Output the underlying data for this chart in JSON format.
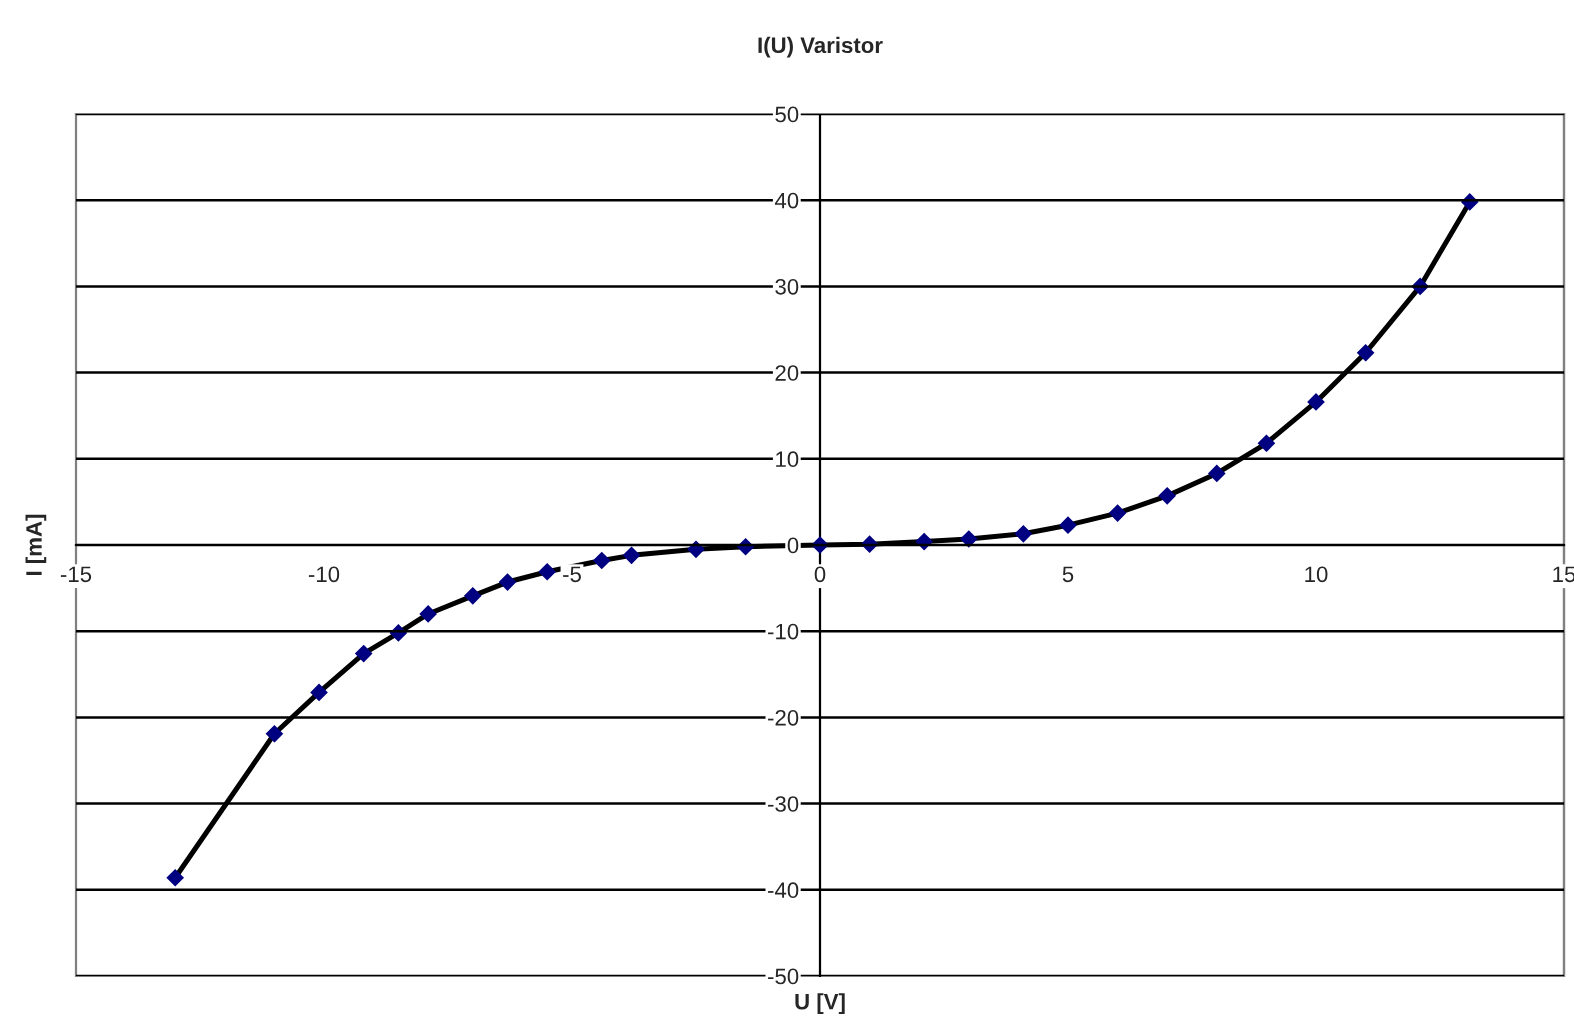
{
  "chart_data": {
    "type": "line",
    "title": "I(U) Varistor",
    "xlabel": "U [V]",
    "ylabel": "I [mA]",
    "xlim": [
      -15,
      15
    ],
    "xticks": [
      -15,
      -10,
      -5,
      0,
      5,
      10,
      15
    ],
    "ylim": [
      -50,
      50
    ],
    "yticks": [
      -50,
      -40,
      -30,
      -20,
      -10,
      0,
      10,
      20,
      30,
      40,
      50
    ],
    "grid": "y",
    "marker": "diamond",
    "line_style": "solid",
    "series": [
      {
        "color": "#000000",
        "x": [
          -13.0,
          -11.0,
          -10.1,
          -9.2,
          -8.5,
          -7.9,
          -7.0,
          -6.3,
          -5.5,
          -4.4,
          -3.8,
          -2.5,
          -1.5,
          0,
          1.0,
          2.1,
          3.0,
          4.1,
          5.0,
          6.0,
          7.0,
          8.0,
          9.0,
          10.0,
          11.0,
          12.1,
          13.1
        ],
        "values": [
          -38.6,
          -21.9,
          -17.1,
          -12.6,
          -10.2,
          -8.0,
          -5.9,
          -4.3,
          -3.1,
          -1.8,
          -1.2,
          -0.5,
          -0.2,
          0,
          0.1,
          0.4,
          0.7,
          1.3,
          2.3,
          3.7,
          5.7,
          8.3,
          11.8,
          16.6,
          22.3,
          30.0,
          39.8
        ]
      }
    ]
  }
}
